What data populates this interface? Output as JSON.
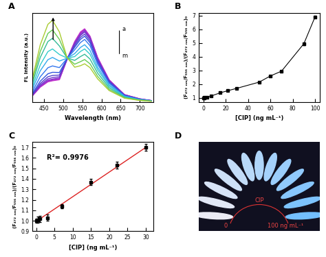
{
  "chart_data": [
    {
      "type": "line",
      "title": "A",
      "x_label": "Wavelength (nm)",
      "y_label": "FL Intensity (a.u.)",
      "x": [
        420,
        440,
        460,
        472,
        490,
        510,
        530,
        545,
        556,
        570,
        590,
        620,
        660,
        700,
        730
      ],
      "xlim": [
        420,
        735
      ],
      "xticks": [
        450,
        500,
        550,
        600,
        650,
        700
      ],
      "ylim": [
        0,
        4200
      ],
      "yticks": [],
      "tick_labels": "x",
      "annotations": [
        "a",
        "m"
      ],
      "series": [
        {
          "color": "#cc33cc",
          "values": [
            300,
            700,
            950,
            1000,
            1050,
            2000,
            2850,
            3300,
            3450,
            3100,
            2100,
            1050,
            350,
            150,
            70
          ]
        },
        {
          "color": "#b833cc",
          "values": [
            306,
            714,
            969,
            1020,
            1070,
            2000,
            2830,
            3260,
            3420,
            3080,
            2080,
            1030,
            345,
            150,
            70
          ]
        },
        {
          "color": "#a033cc",
          "values": [
            315,
            735,
            1000,
            1050,
            1100,
            2010,
            2800,
            3230,
            3400,
            3060,
            2050,
            1020,
            340,
            145,
            70
          ]
        },
        {
          "color": "#8833cc",
          "values": [
            324,
            756,
            1026,
            1080,
            1130,
            2010,
            2760,
            3180,
            3350,
            3015,
            2020,
            1000,
            335,
            140,
            68
          ]
        },
        {
          "color": "#7033cc",
          "values": [
            345,
            805,
            1090,
            1150,
            1190,
            2020,
            2720,
            3130,
            3300,
            2970,
            1990,
            990,
            330,
            140,
            66
          ]
        },
        {
          "color": "#5540cc",
          "values": [
            375,
            875,
            1190,
            1250,
            1270,
            2030,
            2650,
            3040,
            3200,
            2880,
            1930,
            960,
            320,
            135,
            64
          ]
        },
        {
          "color": "#3355dd",
          "values": [
            420,
            980,
            1330,
            1400,
            1390,
            2040,
            2580,
            2950,
            3100,
            2790,
            1870,
            930,
            310,
            130,
            62
          ]
        },
        {
          "color": "#3377ee",
          "values": [
            510,
            1190,
            1615,
            1700,
            1620,
            2050,
            2460,
            2800,
            2950,
            2655,
            1780,
            885,
            295,
            125,
            60
          ]
        },
        {
          "color": "#33aaee",
          "values": [
            630,
            1470,
            1995,
            2100,
            1930,
            2060,
            2280,
            2570,
            2700,
            2430,
            1630,
            810,
            270,
            115,
            55
          ]
        },
        {
          "color": "#33cccc",
          "values": [
            750,
            1750,
            2375,
            2500,
            2240,
            2070,
            2140,
            2380,
            2500,
            2250,
            1510,
            750,
            250,
            105,
            50
          ]
        },
        {
          "color": "#33bb99",
          "values": [
            900,
            2100,
            2850,
            3000,
            2640,
            2080,
            1960,
            2140,
            2250,
            2025,
            1360,
            675,
            225,
            95,
            45
          ]
        },
        {
          "color": "#66cc55",
          "values": [
            1020,
            2380,
            3230,
            3400,
            2950,
            2090,
            1780,
            1900,
            2000,
            1800,
            1210,
            600,
            200,
            85,
            40
          ]
        },
        {
          "color": "#aacc33",
          "values": [
            1155,
            2695,
            3660,
            3850,
            3300,
            2100,
            1640,
            1710,
            1800,
            1620,
            1090,
            540,
            180,
            75,
            35
          ]
        }
      ]
    },
    {
      "type": "line",
      "title": "B",
      "x_label": "[CIP] (ng mL⁻¹)",
      "y_label": "(F₄₇₂ ₙₘ/F₅₅₆ ₙₘ)/(F₄₇₂ ₙₘ/F₅₅₆ ₙₘ)₀",
      "x": [
        0,
        0.5,
        1,
        3,
        7,
        15,
        22,
        30,
        50,
        60,
        70,
        90,
        100
      ],
      "values": [
        1.0,
        1.01,
        1.02,
        1.03,
        1.14,
        1.37,
        1.53,
        1.7,
        2.15,
        2.6,
        2.95,
        4.95,
        6.9
      ],
      "errors": [
        0.02,
        0.03,
        0.03,
        0.03,
        0.02,
        0.03,
        0.03,
        0.03,
        0.04,
        0.05,
        0.05,
        0.1,
        0.08
      ],
      "color": "#000000",
      "marker": "square",
      "xlim": [
        -4,
        104
      ],
      "xticks": [
        0,
        20,
        40,
        60,
        80,
        100
      ],
      "ylim": [
        0.7,
        7.2
      ],
      "yticks": [
        1,
        2,
        3,
        4,
        5,
        6,
        7
      ]
    },
    {
      "type": "scatter",
      "title": "C",
      "x_label": "[CIP] (ng mL⁻¹)",
      "y_label": "(F₄₇₂ ₙₘ/F₅₅₆ ₙₘ)/(F₄₇₂ ₙₘ/F₅₅₆ ₙₘ)₀",
      "annotations": [
        "R²= 0.9976"
      ],
      "x": [
        0,
        0.5,
        1,
        3,
        7,
        15,
        22,
        30
      ],
      "values": [
        1.0,
        1.01,
        1.02,
        1.03,
        1.14,
        1.37,
        1.53,
        1.7
      ],
      "errors": [
        0.02,
        0.03,
        0.03,
        0.03,
        0.02,
        0.03,
        0.03,
        0.03
      ],
      "color": "#000000",
      "marker": "square",
      "fit": {
        "type": "line",
        "color": "#dd2222",
        "x": [
          0,
          30
        ],
        "values": [
          0.995,
          1.7
        ]
      },
      "xlim": [
        -1,
        32
      ],
      "xticks": [
        0,
        5,
        10,
        15,
        20,
        25,
        30
      ],
      "ylim": [
        0.9,
        1.75
      ],
      "yticks": [
        0.9,
        1.0,
        1.1,
        1.2,
        1.3,
        1.4,
        1.5,
        1.6,
        1.7
      ]
    },
    {
      "type": "photo",
      "title": "D",
      "texts": [
        "CIP",
        "0",
        "100 ng mL⁻¹"
      ]
    }
  ]
}
